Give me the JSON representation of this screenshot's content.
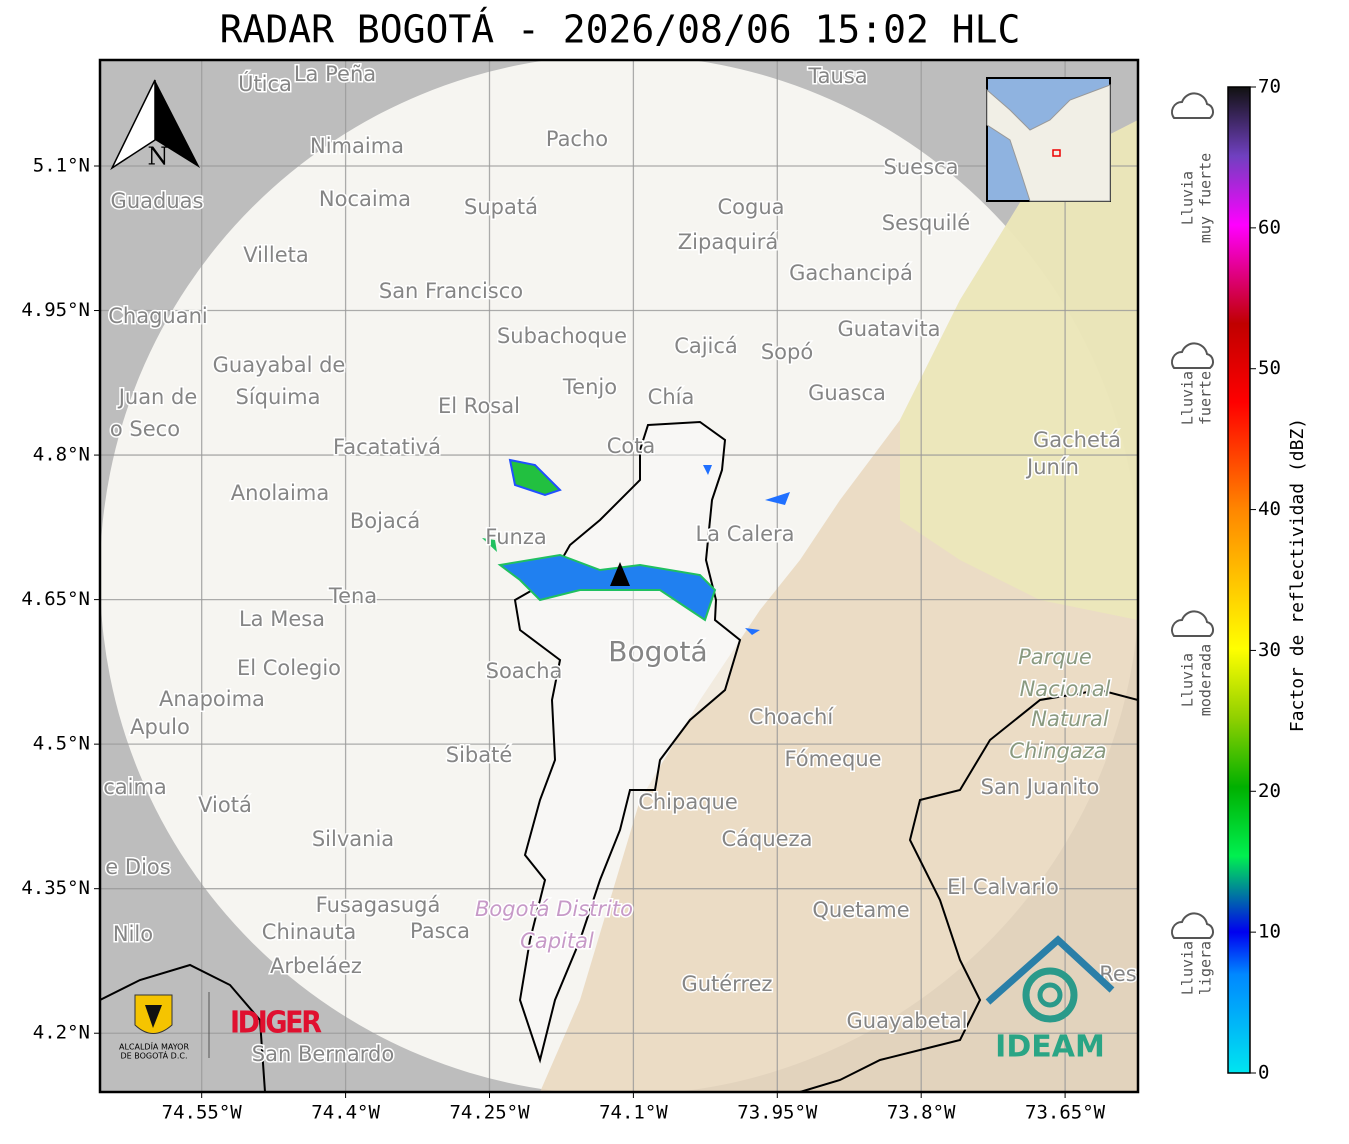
{
  "title": "RADAR BOGOTÁ - 2026/08/06 15:02 HLC",
  "map": {
    "xlim": [
      -74.656,
      -73.574
    ],
    "ylim": [
      4.139,
      5.21
    ],
    "xticks": [
      {
        "value": -74.55,
        "label": "74.55°W"
      },
      {
        "value": -74.4,
        "label": "74.4°W"
      },
      {
        "value": -74.25,
        "label": "74.25°W"
      },
      {
        "value": -74.1,
        "label": "74.1°W"
      },
      {
        "value": -73.95,
        "label": "73.95°W"
      },
      {
        "value": -73.8,
        "label": "73.8°W"
      },
      {
        "value": -73.65,
        "label": "73.65°W"
      }
    ],
    "yticks": [
      {
        "value": 5.1,
        "label": "5.1°N"
      },
      {
        "value": 4.95,
        "label": "4.95°N"
      },
      {
        "value": 4.8,
        "label": "4.8°N"
      },
      {
        "value": 4.65,
        "label": "4.65°N"
      },
      {
        "value": 4.5,
        "label": "4.5°N"
      },
      {
        "value": 4.35,
        "label": "4.35°N"
      },
      {
        "value": 4.2,
        "label": "4.2°N"
      }
    ],
    "grid": true,
    "north": "N",
    "places": [
      "Útica",
      "La Peña",
      "Tausa",
      "Pacho",
      "Nimaima",
      "Suesca",
      "Guaduas",
      "Nocaima",
      "Supatá",
      "Cogua",
      "Sesquilé",
      "Zipaquirá",
      "Villeta",
      "Gachancipá",
      "San Francisco",
      "Chaguani",
      "Guatavita",
      "Subachoque",
      "Cajicá",
      "Sopó",
      "Guayabal de",
      "Síquima",
      "Tenjo",
      "Chía",
      "Guasca",
      "Juan de",
      "o Seco",
      "El Rosal",
      "Facatativá",
      "Gachetá",
      "Junín",
      "Cota",
      "Anolaima",
      "Bojacá",
      "La Calera",
      "Funza",
      "Tena",
      "La Mesa",
      "Bogotá",
      "Parque",
      "Nacional",
      "Natural",
      "Chingaza",
      "Soacha",
      "El Colegio",
      "Anapoima",
      "Apulo",
      "Choachí",
      "Fómeque",
      "Sibaté",
      "San Juanito",
      "caima",
      "Viotá",
      "Chipaque",
      "Silvania",
      "Cáqueza",
      "e Dios",
      "El Calvario",
      "Fusagasugá",
      "Quetame",
      "Bogotá Distrito",
      "Capital",
      "Nilo",
      "Chinauta",
      "Pasca",
      "Arbeláez",
      "Gutérrez",
      "Res",
      "Guayabetal",
      "San Bernardo"
    ]
  },
  "logos": {
    "idiger": "IDIGER",
    "ideam": "IDEAM",
    "alcaldia": [
      "ALCALDÍA MAYOR",
      "DE BOGOTÁ D.C."
    ]
  },
  "colorbar": {
    "label": "Factor de reflectividad (dBZ)",
    "lim": [
      0,
      70
    ],
    "ticks": [
      0,
      10,
      20,
      30,
      40,
      50,
      60,
      70
    ]
  },
  "rain_levels": [
    [
      "Lluvia",
      "muy fuerte"
    ],
    [
      "Lluvia",
      "fuerte"
    ],
    [
      "Lluvia",
      "moderada"
    ],
    [
      "Lluvia",
      "ligera"
    ]
  ]
}
